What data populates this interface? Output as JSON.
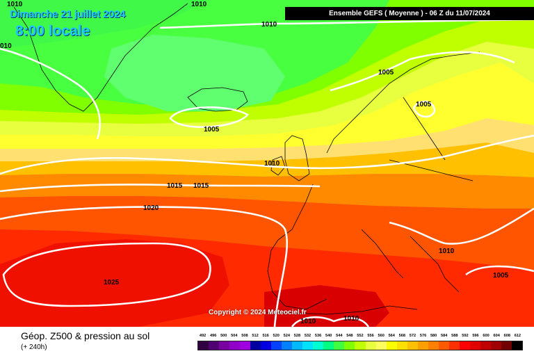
{
  "header": {
    "date": "Dimanche 21 juillet 2024",
    "time": "8:00 locale",
    "run_info": "Ensemble GEFS  ( Moyenne )  -  06 Z du 11/07/2024"
  },
  "copyright": "Copyright © 2024 Meteociel.fr",
  "footer": {
    "field_title": "Géop. Z500 & pression au sol",
    "lead_time": "(+ 240h)"
  },
  "isobar_labels": [
    "1010",
    "1010",
    "010",
    "1005",
    "1005",
    "1005",
    "1010",
    "1015",
    "1015",
    "1020",
    "1025",
    "1010",
    "1010",
    "1005",
    "1010",
    "1010"
  ],
  "color_scale": {
    "labels": [
      "492",
      "496",
      "500",
      "504",
      "508",
      "512",
      "516",
      "520",
      "524",
      "528",
      "532",
      "536",
      "540",
      "544",
      "548",
      "552",
      "556",
      "560",
      "564",
      "568",
      "572",
      "576",
      "580",
      "584",
      "588",
      "592",
      "596",
      "600",
      "604",
      "608",
      "612"
    ],
    "colors": [
      "#300040",
      "#500070",
      "#7800a0",
      "#9000c8",
      "#a000e0",
      "#0000a0",
      "#0000e0",
      "#0040ff",
      "#0080ff",
      "#00b8ff",
      "#00e0ff",
      "#00ffd0",
      "#00ff80",
      "#40ff40",
      "#80ff00",
      "#c0ff00",
      "#e8ff40",
      "#ffff60",
      "#ffff00",
      "#ffe000",
      "#ffc000",
      "#ffa000",
      "#ff8000",
      "#ff5a00",
      "#ff3000",
      "#ff0000",
      "#e00000",
      "#c00000",
      "#a00000",
      "#700000",
      "#000000"
    ]
  }
}
